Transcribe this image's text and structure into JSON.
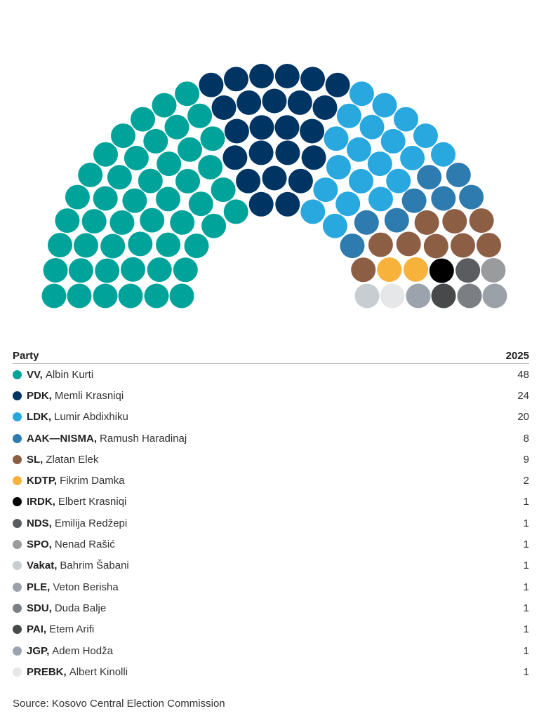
{
  "chart_data": {
    "type": "parliament",
    "total_seats": 120,
    "header": {
      "party": "Party",
      "year": "2025"
    },
    "parties": [
      {
        "abbr": "VV,",
        "leader": "Albin Kurti",
        "seats": 48,
        "color": "#00a39a"
      },
      {
        "abbr": "PDK,",
        "leader": "Memli Krasniqi",
        "seats": 24,
        "color": "#003563"
      },
      {
        "abbr": "LDK,",
        "leader": "Lumir Abdixhiku",
        "seats": 20,
        "color": "#29a8e0"
      },
      {
        "abbr": "AAK—NISMA,",
        "leader": "Ramush Haradinaj",
        "seats": 8,
        "color": "#2e7bb0"
      },
      {
        "abbr": "SL,",
        "leader": "Zlatan Elek",
        "seats": 9,
        "color": "#8c5e44"
      },
      {
        "abbr": "KDTP,",
        "leader": "Fikrim Damka",
        "seats": 2,
        "color": "#f7b23b"
      },
      {
        "abbr": "IRDK,",
        "leader": "Elbert Krasniqi",
        "seats": 1,
        "color": "#000000"
      },
      {
        "abbr": "NDS,",
        "leader": "Emilija Redžepi",
        "seats": 1,
        "color": "#5a5c5f"
      },
      {
        "abbr": "SPO,",
        "leader": "Nenad Rašić",
        "seats": 1,
        "color": "#9a9b9d"
      },
      {
        "abbr": "Vakat,",
        "leader": "Bahrim Šabani",
        "seats": 1,
        "color": "#c8cdd2"
      },
      {
        "abbr": "PLE,",
        "leader": "Veton Berisha",
        "seats": 1,
        "color": "#9aa1a8"
      },
      {
        "abbr": "SDU,",
        "leader": "Duda Balje",
        "seats": 1,
        "color": "#7b7f84"
      },
      {
        "abbr": "PAI,",
        "leader": "Etem Arifi",
        "seats": 1,
        "color": "#47494b"
      },
      {
        "abbr": "JGP,",
        "leader": "Adem Hodža",
        "seats": 1,
        "color": "#9ba4ad"
      },
      {
        "abbr": "PREBK,",
        "leader": "Albert Kinolli",
        "seats": 1,
        "color": "#e6e7e8"
      }
    ]
  },
  "source": "Source: Kosovo Central Election Commission"
}
